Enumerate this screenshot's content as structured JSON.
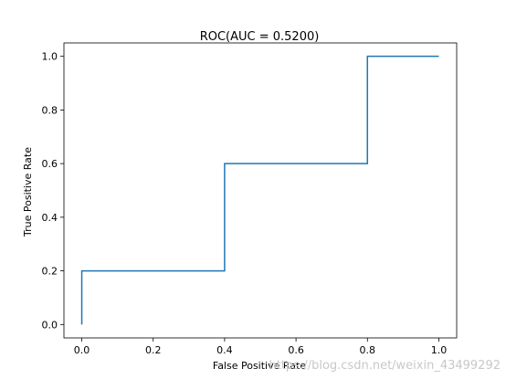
{
  "chart_data": {
    "type": "line",
    "title": "ROC(AUC = 0.5200)",
    "xlabel": "False Positive Rate",
    "ylabel": "True Positive Rate",
    "xlim": [
      -0.05,
      1.05
    ],
    "ylim": [
      -0.05,
      1.05
    ],
    "xticks": [
      0.0,
      0.2,
      0.4,
      0.6,
      0.8,
      1.0
    ],
    "yticks": [
      0.0,
      0.2,
      0.4,
      0.6,
      0.8,
      1.0
    ],
    "xtick_labels": [
      "0.0",
      "0.2",
      "0.4",
      "0.6",
      "0.8",
      "1.0"
    ],
    "ytick_labels": [
      "0.0",
      "0.2",
      "0.4",
      "0.6",
      "0.8",
      "1.0"
    ],
    "grid": false,
    "series": [
      {
        "color": "#1f77b4",
        "x": [
          0.0,
          0.0,
          0.4,
          0.4,
          0.8,
          0.8,
          1.0
        ],
        "y": [
          0.0,
          0.2,
          0.2,
          0.6,
          0.6,
          1.0,
          1.0
        ]
      }
    ]
  },
  "watermark": "https://blog.csdn.net/weixin_43499292"
}
